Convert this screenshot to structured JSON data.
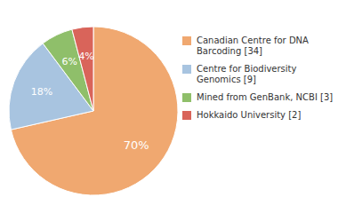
{
  "chart_data": {
    "type": "pie",
    "categories": [
      "Canadian Centre for DNA\nBarcoding [34]",
      "Centre for Biodiversity\nGenomics [9]",
      "Mined from GenBank, NCBI [3]",
      "Hokkaido University [2]"
    ],
    "values": [
      70,
      18,
      6,
      4
    ],
    "value_labels": [
      "70%",
      "18%",
      "6%",
      "4%"
    ],
    "colors": [
      "#f0a870",
      "#a8c4e0",
      "#8fbf6a",
      "#d9645a"
    ],
    "data_labels": true,
    "legend": "right"
  }
}
